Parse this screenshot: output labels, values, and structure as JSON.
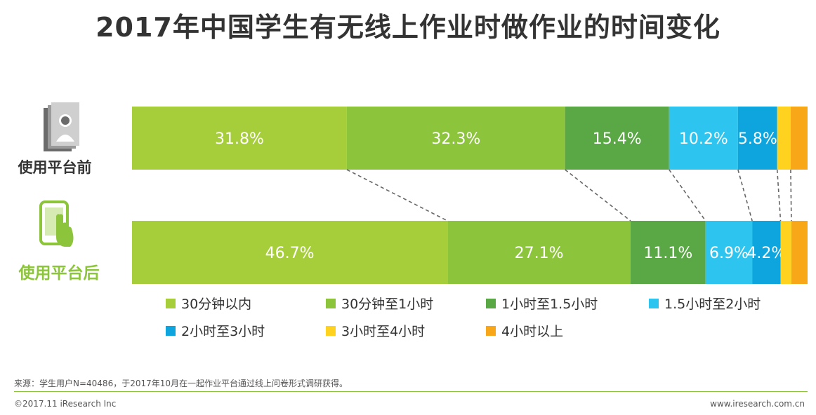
{
  "title": "2017年中国学生有无线上作业时做作业的时间变化",
  "chart_data": {
    "type": "bar",
    "orientation": "horizontal-stacked-100",
    "categories": [
      "使用平台前",
      "使用平台后"
    ],
    "series": [
      {
        "name": "30分钟以内",
        "values": [
          31.8,
          46.7
        ],
        "color": "#a6cd3a"
      },
      {
        "name": "30分钟至1小时",
        "values": [
          32.3,
          27.1
        ],
        "color": "#8cc43c"
      },
      {
        "name": "1小时至1.5小时",
        "values": [
          15.4,
          11.1
        ],
        "color": "#5aa845"
      },
      {
        "name": "1.5小时至2小时",
        "values": [
          10.2,
          6.9
        ],
        "color": "#2ec4f0"
      },
      {
        "name": "2小时至3小时",
        "values": [
          5.8,
          4.2
        ],
        "color": "#0ea5df"
      },
      {
        "name": "3小时至4小时",
        "values": [
          2.0,
          1.6
        ],
        "color": "#ffd21f"
      },
      {
        "name": "4小时以上",
        "values": [
          2.5,
          2.4
        ],
        "color": "#f7a718"
      }
    ],
    "labels": [
      [
        "31.8%",
        "32.3%",
        "15.4%",
        "10.2%",
        "5.8%",
        "",
        ""
      ],
      [
        "46.7%",
        "27.1%",
        "11.1%",
        "6.9%",
        "4.2%",
        "",
        ""
      ]
    ],
    "connector_lines": "dashed",
    "legend_position": "bottom"
  },
  "footer": {
    "source": "来源：学生用户N=40486，于2017年10月在一起作业平台通过线上问卷形式调研获得。",
    "copyright": "©2017.11 iResearch Inc",
    "website": "www.iresearch.com.cn"
  },
  "icons": {
    "before": "book-student-icon",
    "after": "phone-touch-icon"
  }
}
